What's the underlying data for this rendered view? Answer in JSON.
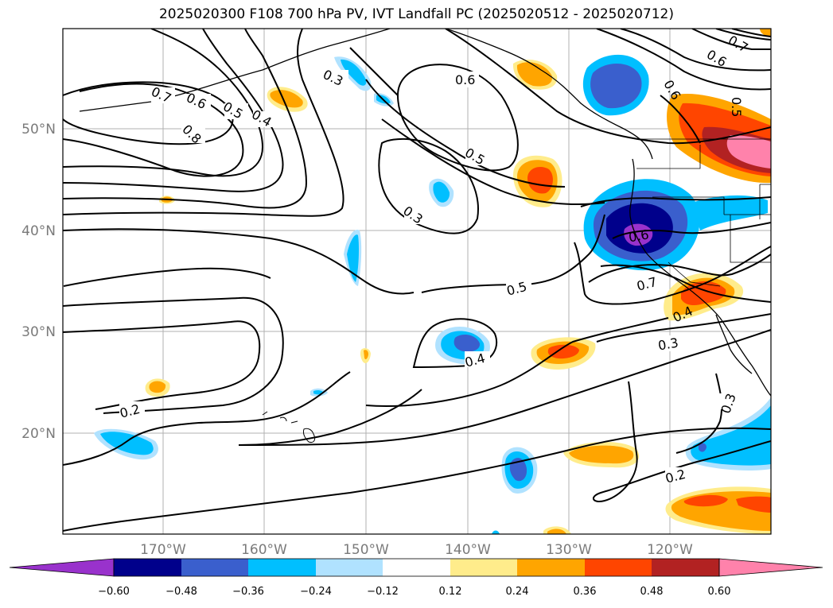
{
  "title": "2025020300 F108 700 hPa PV, IVT Landfall PC (2025020512 - 2025020712)",
  "lon_ticks": [
    "170°W",
    "160°W",
    "150°W",
    "140°W",
    "130°W",
    "120°W"
  ],
  "lat_ticks": [
    "50°N",
    "40°N",
    "30°N",
    "20°N"
  ],
  "contour_labels": [
    "0.3",
    "0.6",
    "0.7",
    "0.6",
    "0.5",
    "0.4",
    "0.8",
    "0.5",
    "0.3",
    "0.5",
    "0.4",
    "0.6",
    "0.7",
    "0.4",
    "0.3",
    "0.2",
    "0.2",
    "0.3",
    "0.7",
    "0.6",
    "0.6",
    "0.5"
  ],
  "colorbar": {
    "ticks": [
      "−0.60",
      "−0.48",
      "−0.36",
      "−0.24",
      "−0.12",
      "0.12",
      "0.24",
      "0.36",
      "0.48",
      "0.60"
    ],
    "colors": [
      "#9932cc",
      "#00008b",
      "#3a5fcd",
      "#00bfff",
      "#b0e2ff",
      "#ffffff",
      "#ffec8b",
      "#ffa500",
      "#ff4500",
      "#b22222",
      "#ff82ab"
    ]
  }
}
